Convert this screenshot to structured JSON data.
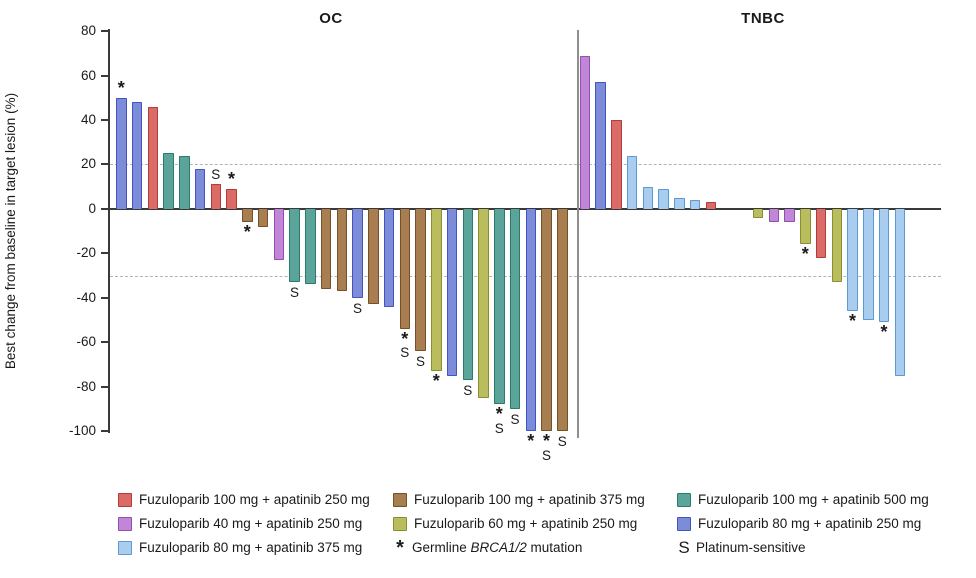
{
  "titles": {
    "oc": "OC",
    "tnbc": "TNBC"
  },
  "y_axis": {
    "label": "Best change from baseline in target lesion (%)",
    "ticks": [
      80,
      60,
      40,
      20,
      0,
      -20,
      -40,
      -60,
      -80,
      -100
    ],
    "range": [
      -100,
      80
    ]
  },
  "reference_lines": [
    20,
    -30
  ],
  "annotation_symbols": {
    "star": "*",
    "s": "S"
  },
  "colors": {
    "fz100_ap250": {
      "fill": "#db6b66",
      "border": "#b13c39"
    },
    "fz100_ap375": {
      "fill": "#a87e50",
      "border": "#74512a"
    },
    "fz100_ap500": {
      "fill": "#5ba49a",
      "border": "#2b7a6c"
    },
    "fz40_ap250": {
      "fill": "#c186d8",
      "border": "#9050b0"
    },
    "fz60_ap250": {
      "fill": "#b9bd5d",
      "border": "#8a8f2e"
    },
    "fz80_ap250": {
      "fill": "#7c8cd8",
      "border": "#4253c2"
    },
    "fz80_ap375": {
      "fill": "#a8cdee",
      "border": "#5b9bd5"
    }
  },
  "chart_data": {
    "type": "bar",
    "title": "",
    "ylabel": "Best change from baseline in target lesion (%)",
    "ylim": [
      -100,
      80
    ],
    "grid": "dashed reference lines at +20 and -30",
    "legend_position": "bottom",
    "groups": [
      {
        "name": "OC",
        "bars": [
          {
            "v": 50,
            "c": "fz80_ap250",
            "a": [
              "*"
            ]
          },
          {
            "v": 48,
            "c": "fz80_ap250",
            "a": []
          },
          {
            "v": 46,
            "c": "fz100_ap250",
            "a": []
          },
          {
            "v": 25,
            "c": "fz100_ap500",
            "a": []
          },
          {
            "v": 24,
            "c": "fz100_ap500",
            "a": []
          },
          {
            "v": 18,
            "c": "fz80_ap250",
            "a": []
          },
          {
            "v": 11,
            "c": "fz100_ap250",
            "a": [
              "S"
            ]
          },
          {
            "v": 9,
            "c": "fz100_ap250",
            "a": [
              "*"
            ]
          },
          {
            "v": -6,
            "c": "fz100_ap375",
            "a": [
              "*"
            ]
          },
          {
            "v": -8,
            "c": "fz100_ap375",
            "a": []
          },
          {
            "v": -23,
            "c": "fz40_ap250",
            "a": []
          },
          {
            "v": -33,
            "c": "fz100_ap500",
            "a": [
              "S"
            ]
          },
          {
            "v": -34,
            "c": "fz100_ap500",
            "a": []
          },
          {
            "v": -36,
            "c": "fz100_ap375",
            "a": []
          },
          {
            "v": -37,
            "c": "fz100_ap375",
            "a": []
          },
          {
            "v": -40,
            "c": "fz80_ap250",
            "a": [
              "S"
            ]
          },
          {
            "v": -43,
            "c": "fz100_ap375",
            "a": []
          },
          {
            "v": -44,
            "c": "fz80_ap250",
            "a": []
          },
          {
            "v": -54,
            "c": "fz100_ap375",
            "a": [
              "*",
              "S"
            ]
          },
          {
            "v": -64,
            "c": "fz100_ap375",
            "a": [
              "S"
            ]
          },
          {
            "v": -73,
            "c": "fz60_ap250",
            "a": [
              "*"
            ]
          },
          {
            "v": -75,
            "c": "fz80_ap250",
            "a": []
          },
          {
            "v": -77,
            "c": "fz100_ap500",
            "a": [
              "S"
            ]
          },
          {
            "v": -85,
            "c": "fz60_ap250",
            "a": []
          },
          {
            "v": -88,
            "c": "fz100_ap500",
            "a": [
              "*",
              "S"
            ]
          },
          {
            "v": -90,
            "c": "fz100_ap500",
            "a": [
              "S"
            ]
          },
          {
            "v": -100,
            "c": "fz80_ap250",
            "a": [
              "*"
            ]
          },
          {
            "v": -100,
            "c": "fz100_ap375",
            "a": [
              "*",
              "S"
            ]
          },
          {
            "v": -100,
            "c": "fz100_ap375",
            "a": [
              "S"
            ]
          }
        ]
      },
      {
        "name": "TNBC",
        "bars": [
          {
            "v": 69,
            "c": "fz40_ap250",
            "a": []
          },
          {
            "v": 57,
            "c": "fz80_ap250",
            "a": []
          },
          {
            "v": 40,
            "c": "fz100_ap250",
            "a": []
          },
          {
            "v": 24,
            "c": "fz80_ap375",
            "a": []
          },
          {
            "v": 10,
            "c": "fz80_ap375",
            "a": []
          },
          {
            "v": 9,
            "c": "fz80_ap375",
            "a": []
          },
          {
            "v": 5,
            "c": "fz80_ap375",
            "a": []
          },
          {
            "v": 4,
            "c": "fz80_ap375",
            "a": []
          },
          {
            "v": 3,
            "c": "fz100_ap250",
            "a": []
          },
          {
            "gap": true
          },
          {
            "gap": true
          },
          {
            "v": -4,
            "c": "fz60_ap250",
            "a": []
          },
          {
            "v": -6,
            "c": "fz40_ap250",
            "a": []
          },
          {
            "v": -6,
            "c": "fz40_ap250",
            "a": []
          },
          {
            "v": -16,
            "c": "fz60_ap250",
            "a": [
              "*"
            ]
          },
          {
            "v": -22,
            "c": "fz100_ap250",
            "a": []
          },
          {
            "v": -33,
            "c": "fz60_ap250",
            "a": []
          },
          {
            "v": -46,
            "c": "fz80_ap375",
            "a": [
              "*"
            ]
          },
          {
            "v": -50,
            "c": "fz80_ap375",
            "a": []
          },
          {
            "v": -51,
            "c": "fz80_ap375",
            "a": [
              "*"
            ]
          },
          {
            "v": -75,
            "c": "fz80_ap375",
            "a": []
          }
        ]
      }
    ]
  },
  "legend": [
    {
      "col": 0,
      "row": 0,
      "type": "swatch",
      "color": "fz100_ap250",
      "label": "Fuzuloparib 100 mg + apatinib 250 mg"
    },
    {
      "col": 0,
      "row": 1,
      "type": "swatch",
      "color": "fz40_ap250",
      "label": "Fuzuloparib 40 mg + apatinib 250 mg"
    },
    {
      "col": 0,
      "row": 2,
      "type": "swatch",
      "color": "fz80_ap375",
      "label": "Fuzuloparib 80 mg + apatinib 375 mg"
    },
    {
      "col": 1,
      "row": 0,
      "type": "swatch",
      "color": "fz100_ap375",
      "label": "Fuzuloparib 100 mg + apatinib 375 mg"
    },
    {
      "col": 1,
      "row": 1,
      "type": "swatch",
      "color": "fz60_ap250",
      "label": "Fuzuloparib 60 mg + apatinib 250 mg"
    },
    {
      "col": 1,
      "row": 2,
      "type": "symbol",
      "symbol": "*",
      "label": "Germline BRCA1/2 mutation",
      "italic": "BRCA1/2"
    },
    {
      "col": 2,
      "row": 0,
      "type": "swatch",
      "color": "fz100_ap500",
      "label": "Fuzuloparib 100 mg + apatinib 500 mg"
    },
    {
      "col": 2,
      "row": 1,
      "type": "swatch",
      "color": "fz80_ap250",
      "label": "Fuzuloparib 80 mg + apatinib 250 mg"
    },
    {
      "col": 2,
      "row": 2,
      "type": "symbol",
      "symbol": "S",
      "label": "Platinum-sensitive"
    }
  ]
}
